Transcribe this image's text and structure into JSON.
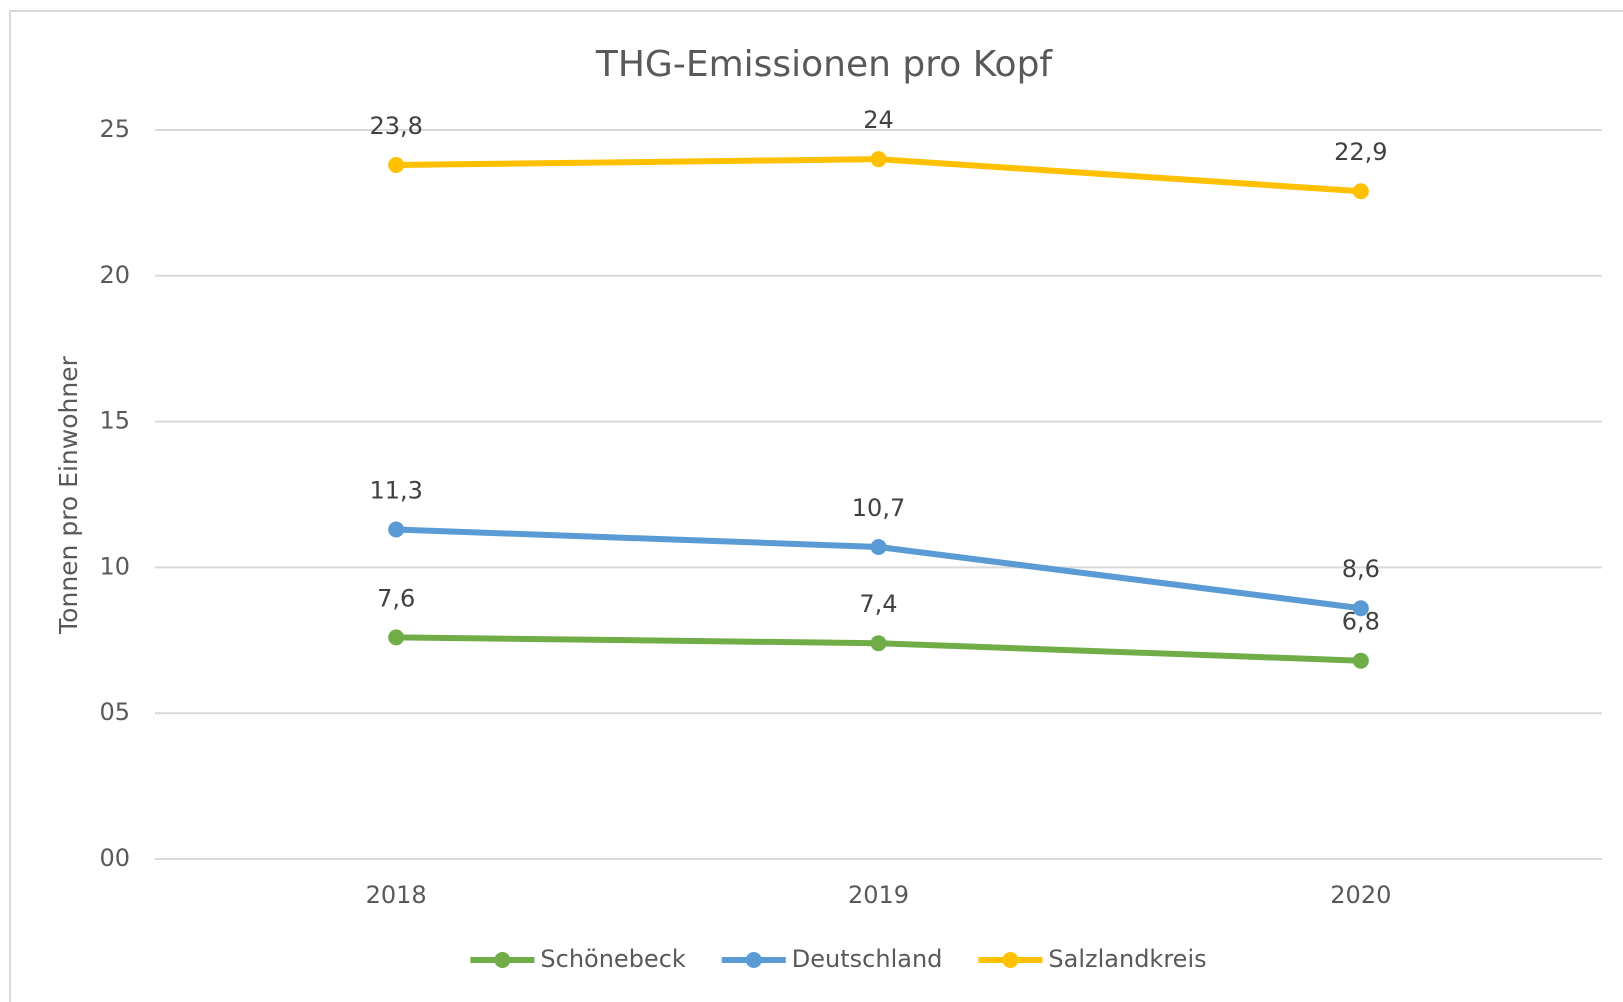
{
  "chart_data": {
    "type": "line",
    "title": "THG-Emissionen pro Kopf",
    "y_label": "Tonnen pro Einwohner",
    "categories": [
      "2018",
      "2019",
      "2020"
    ],
    "series": [
      {
        "name": "Schönebeck",
        "color": "#70ad47",
        "values": [
          7.6,
          7.4,
          6.8
        ],
        "value_labels": [
          "7,6",
          "7,4",
          "6,8"
        ]
      },
      {
        "name": "Deutschland",
        "color": "#5b9bd5",
        "values": [
          11.3,
          10.7,
          8.6
        ],
        "value_labels": [
          "11,3",
          "10,7",
          "8,6"
        ]
      },
      {
        "name": "Salzlandkreis",
        "color": "#ffc000",
        "values": [
          23.8,
          24,
          22.9
        ],
        "value_labels": [
          "23,8",
          "24",
          "22,9"
        ]
      }
    ],
    "ylim": [
      0,
      25
    ],
    "yticks": [
      {
        "value": 0,
        "label": "00"
      },
      {
        "value": 5,
        "label": "05"
      },
      10,
      15,
      20,
      25
    ],
    "grid": true,
    "legend": "bottom"
  }
}
